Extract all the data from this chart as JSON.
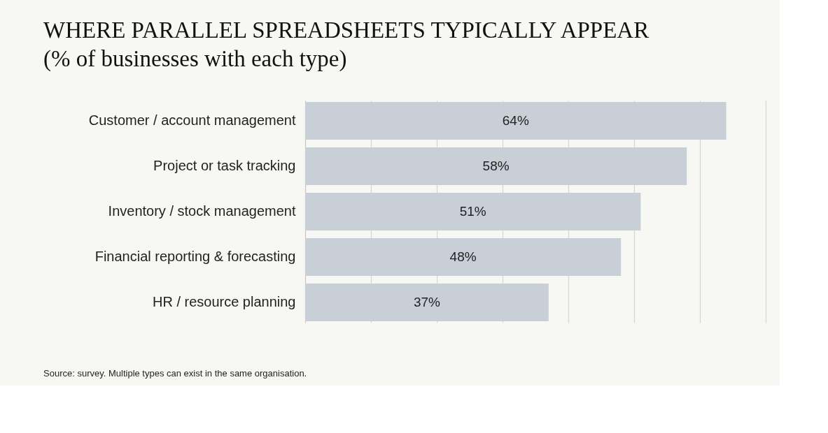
{
  "chart_data": {
    "type": "bar",
    "orientation": "horizontal",
    "title": "WHERE PARALLEL SPREADSHEETS TYPICALLY APPEAR",
    "subtitle": "(% of businesses with each type)",
    "categories": [
      "Customer / account management",
      "Project or task tracking",
      "Inventory / stock management",
      "Financial reporting & forecasting",
      "HR / resource planning"
    ],
    "values": [
      64,
      58,
      51,
      48,
      37
    ],
    "value_labels": [
      "64%",
      "58%",
      "51%",
      "48%",
      "37%"
    ],
    "color": "#c8cfd6",
    "xlim": [
      0,
      70
    ],
    "xticks": [
      0,
      10,
      20,
      30,
      40,
      50,
      60,
      70
    ],
    "grid": "x",
    "tick_labels": "y",
    "annotations": [
      "Source: survey. Multiple types can exist in the same organisation."
    ]
  }
}
